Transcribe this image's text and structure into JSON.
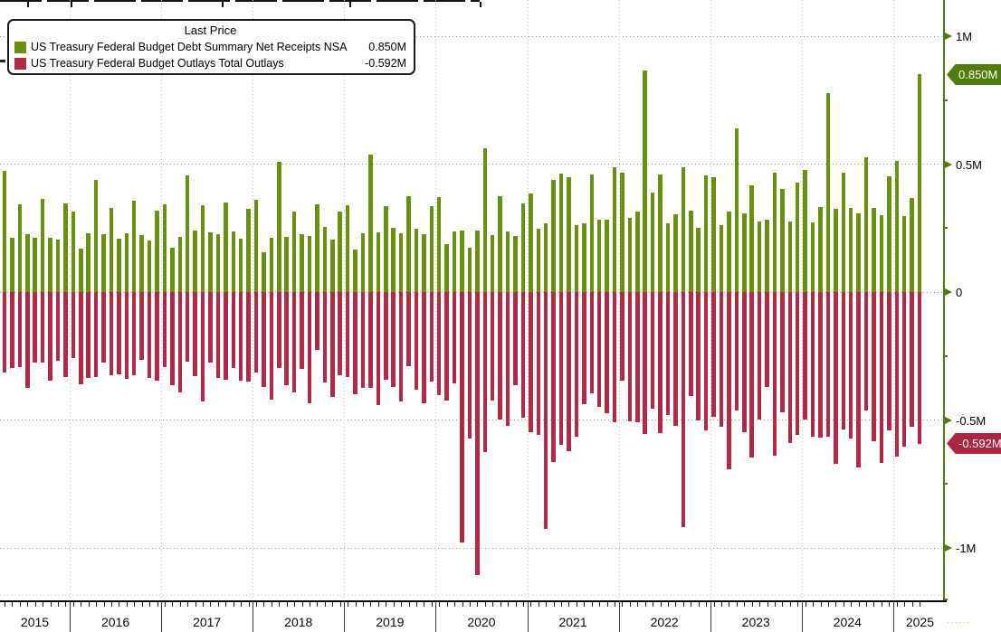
{
  "legend": {
    "title": "Last Price",
    "series": [
      {
        "name": "US Treasury Federal Budget Debt Summary Net Receipts NSA",
        "last_price": "0.850M",
        "color": "#67910e"
      },
      {
        "name": "US Treasury Federal Budget Outlays Total Outlays",
        "last_price": "-0.592M",
        "color": "#b12945"
      }
    ]
  },
  "y_axis": {
    "axis_color": "#4e7a10",
    "ticks": [
      {
        "label": "1M",
        "value": 1.0
      },
      {
        "label": "0.5M",
        "value": 0.5
      },
      {
        "label": "0",
        "value": 0.0
      },
      {
        "label": "-0.5M",
        "value": -0.5
      },
      {
        "label": "-1M",
        "value": -1.0
      }
    ],
    "minor_tick_values": [
      0.75,
      0.25,
      -0.25,
      -0.75,
      -1.2
    ]
  },
  "x_axis": {
    "years": [
      "2015",
      "2016",
      "2017",
      "2018",
      "2019",
      "2020",
      "2021",
      "2022",
      "2023",
      "2024",
      "2025"
    ]
  },
  "price_tags": [
    {
      "label": "0.850M",
      "value": 0.85,
      "color": "#4f7d0a"
    },
    {
      "label": "-0.592M",
      "value": -0.592,
      "color": "#ad2540"
    }
  ],
  "chart_data": {
    "type": "bar",
    "x_start": "2015-04",
    "x_end": "2025-04",
    "frequency": "monthly",
    "unit": "M (millions USD, 1M = 1,000,000 million)",
    "ylim": [
      -1.25,
      1.1
    ],
    "grid": true,
    "legend_position": "top-left",
    "series": [
      {
        "name": "US Treasury Federal Budget Debt Summary Net Receipts NSA",
        "color": "#67910e",
        "values": [
          0.472,
          0.212,
          0.343,
          0.225,
          0.211,
          0.365,
          0.211,
          0.205,
          0.346,
          0.314,
          0.169,
          0.228,
          0.438,
          0.225,
          0.33,
          0.209,
          0.231,
          0.357,
          0.222,
          0.2,
          0.319,
          0.344,
          0.172,
          0.216,
          0.456,
          0.24,
          0.339,
          0.232,
          0.226,
          0.349,
          0.235,
          0.208,
          0.326,
          0.362,
          0.156,
          0.211,
          0.51,
          0.217,
          0.316,
          0.225,
          0.219,
          0.344,
          0.253,
          0.206,
          0.313,
          0.34,
          0.167,
          0.229,
          0.536,
          0.232,
          0.334,
          0.251,
          0.228,
          0.374,
          0.246,
          0.225,
          0.336,
          0.372,
          0.188,
          0.237,
          0.242,
          0.174,
          0.241,
          0.563,
          0.223,
          0.373,
          0.238,
          0.22,
          0.346,
          0.385,
          0.246,
          0.268,
          0.439,
          0.464,
          0.449,
          0.262,
          0.268,
          0.46,
          0.284,
          0.281,
          0.487,
          0.465,
          0.29,
          0.315,
          0.864,
          0.389,
          0.461,
          0.269,
          0.304,
          0.488,
          0.319,
          0.252,
          0.455,
          0.447,
          0.262,
          0.313,
          0.639,
          0.307,
          0.418,
          0.276,
          0.283,
          0.468,
          0.403,
          0.275,
          0.429,
          0.477,
          0.271,
          0.332,
          0.776,
          0.324,
          0.466,
          0.33,
          0.307,
          0.528,
          0.327,
          0.302,
          0.454,
          0.513,
          0.296,
          0.368,
          0.85
        ]
      },
      {
        "name": "US Treasury Federal Budget Outlays Total Outlays",
        "color": "#b12945",
        "values": [
          -0.315,
          -0.297,
          -0.292,
          -0.375,
          -0.275,
          -0.274,
          -0.348,
          -0.27,
          -0.332,
          -0.259,
          -0.361,
          -0.336,
          -0.332,
          -0.277,
          -0.324,
          -0.322,
          -0.338,
          -0.324,
          -0.266,
          -0.337,
          -0.347,
          -0.293,
          -0.364,
          -0.392,
          -0.273,
          -0.329,
          -0.429,
          -0.275,
          -0.334,
          -0.341,
          -0.298,
          -0.347,
          -0.349,
          -0.313,
          -0.371,
          -0.42,
          -0.296,
          -0.364,
          -0.391,
          -0.302,
          -0.433,
          -0.225,
          -0.353,
          -0.411,
          -0.326,
          -0.332,
          -0.401,
          -0.376,
          -0.376,
          -0.44,
          -0.342,
          -0.371,
          -0.428,
          -0.291,
          -0.38,
          -0.434,
          -0.349,
          -0.404,
          -0.423,
          -0.356,
          -0.98,
          -0.573,
          -1.105,
          -0.626,
          -0.423,
          -0.498,
          -0.522,
          -0.365,
          -0.49,
          -0.547,
          -0.559,
          -0.927,
          -0.664,
          -0.596,
          -0.623,
          -0.564,
          -0.439,
          -0.396,
          -0.449,
          -0.473,
          -0.508,
          -0.346,
          -0.506,
          -0.508,
          -0.555,
          -0.455,
          -0.55,
          -0.48,
          -0.523,
          -0.918,
          -0.406,
          -0.501,
          -0.54,
          -0.486,
          -0.525,
          -0.691,
          -0.462,
          -0.548,
          -0.646,
          -0.497,
          -0.372,
          -0.638,
          -0.47,
          -0.589,
          -0.559,
          -0.499,
          -0.567,
          -0.568,
          -0.567,
          -0.671,
          -0.537,
          -0.574,
          -0.687,
          -0.464,
          -0.584,
          -0.669,
          -0.541,
          -0.642,
          -0.603,
          -0.528,
          -0.592
        ]
      }
    ]
  }
}
